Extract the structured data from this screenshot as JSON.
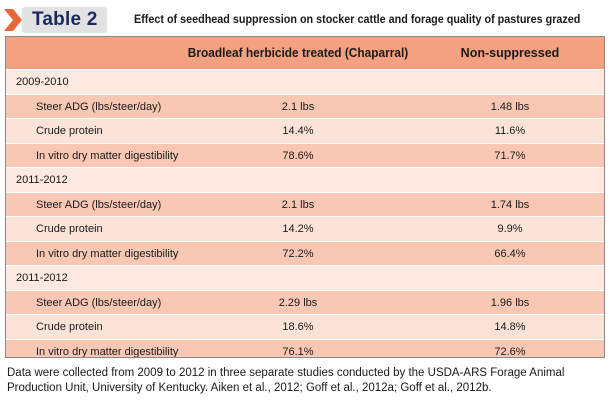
{
  "header": {
    "table_label": "Table 2",
    "caption": "Effect of seedhead suppression on stocker cattle and forage quality of pastures grazed"
  },
  "table": {
    "columns": [
      "",
      "Broadleaf herbicide treated (Chaparral)",
      "Non-suppressed"
    ],
    "sections": [
      {
        "title": "2009-2010",
        "rows": [
          {
            "label": "Steer ADG (lbs/steer/day)",
            "treated": "2.1 lbs",
            "non_suppressed": "1.48 lbs"
          },
          {
            "label": "Crude protein",
            "treated": "14.4%",
            "non_suppressed": "11.6%"
          },
          {
            "label": "In vitro dry matter digestibility",
            "treated": "78.6%",
            "non_suppressed": "71.7%"
          }
        ]
      },
      {
        "title": "2011-2012",
        "rows": [
          {
            "label": "Steer ADG (lbs/steer/day)",
            "treated": "2.1 lbs",
            "non_suppressed": "1.74 lbs"
          },
          {
            "label": "Crude protein",
            "treated": "14.2%",
            "non_suppressed": "9.9%"
          },
          {
            "label": "In vitro dry matter digestibility",
            "treated": "72.2%",
            "non_suppressed": "66.4%"
          }
        ]
      },
      {
        "title": "2011-2012",
        "rows": [
          {
            "label": "Steer ADG (lbs/steer/day)",
            "treated": "2.29 lbs",
            "non_suppressed": "1.96 lbs"
          },
          {
            "label": "Crude protein",
            "treated": "18.6%",
            "non_suppressed": "14.8%"
          },
          {
            "label": "In vitro dry matter digestibility",
            "treated": "76.1%",
            "non_suppressed": "72.6%"
          }
        ]
      }
    ]
  },
  "footnote": "Data were collected from 2009 to 2012 in three separate studies conducted by the USDA-ARS Forage Animal Production Unit, University of Kentucky. Aiken et al., 2012; Goff et al., 2012a; Goff et al., 2012b.",
  "colors": {
    "header_row": "#f3a181",
    "odd_row": "#f8c8b4",
    "even_row": "#fce3d8",
    "section_row": "#fde9e0",
    "label_text": "#1a2a5e",
    "chevron": "#e8673a"
  },
  "icons": {
    "chevron": "chevron-right-icon"
  }
}
